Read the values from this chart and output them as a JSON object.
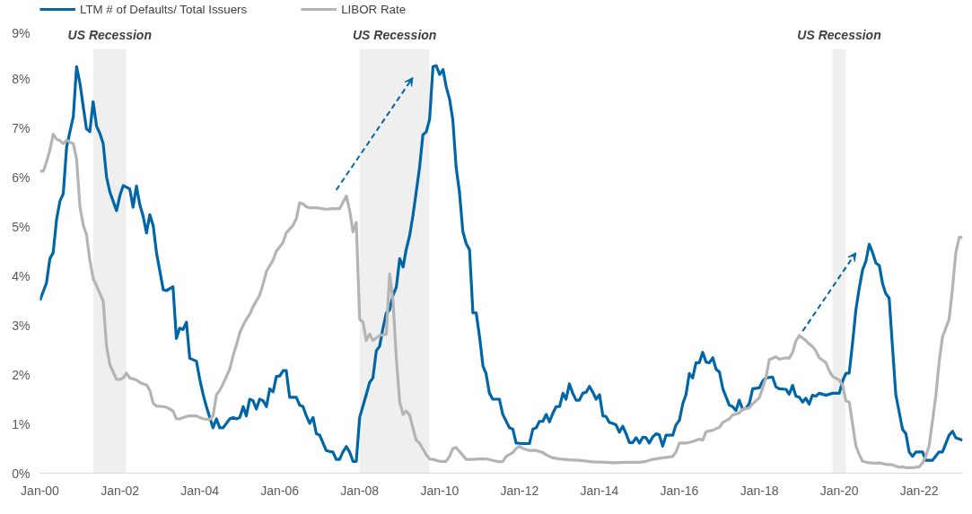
{
  "chart_data": {
    "type": "line",
    "legend": "top left",
    "grid": false,
    "line_style": "solid",
    "marker": "none",
    "xlim": [
      "2000-01",
      "2023-02"
    ],
    "ylim": [
      0,
      9
    ],
    "xticks": [
      {
        "value": "2000-01",
        "label": "Jan-00"
      },
      {
        "value": "2002-01",
        "label": "Jan-02"
      },
      {
        "value": "2004-01",
        "label": "Jan-04"
      },
      {
        "value": "2006-01",
        "label": "Jan-06"
      },
      {
        "value": "2008-01",
        "label": "Jan-08"
      },
      {
        "value": "2010-01",
        "label": "Jan-10"
      },
      {
        "value": "2012-01",
        "label": "Jan-12"
      },
      {
        "value": "2014-01",
        "label": "Jan-14"
      },
      {
        "value": "2016-01",
        "label": "Jan-16"
      },
      {
        "value": "2018-01",
        "label": "Jan-18"
      },
      {
        "value": "2020-01",
        "label": "Jan-20"
      },
      {
        "value": "2022-01",
        "label": "Jan-22"
      }
    ],
    "yticks": [
      {
        "value": 0,
        "label": "0%"
      },
      {
        "value": 1,
        "label": "1%"
      },
      {
        "value": 2,
        "label": "2%"
      },
      {
        "value": 3,
        "label": "3%"
      },
      {
        "value": 4,
        "label": "4%"
      },
      {
        "value": 5,
        "label": "5%"
      },
      {
        "value": 6,
        "label": "6%"
      },
      {
        "value": 7,
        "label": "7%"
      },
      {
        "value": 8,
        "label": "8%"
      },
      {
        "value": 9,
        "label": "9%"
      }
    ],
    "bands": [
      {
        "axis": "x",
        "from": "2001-05",
        "to": "2002-03",
        "label": "US Recession",
        "color": "#efefef"
      },
      {
        "axis": "x",
        "from": "2008-01",
        "to": "2009-10",
        "label": "US Recession",
        "color": "#efefef"
      },
      {
        "axis": "x",
        "from": "2019-11",
        "to": "2020-03",
        "label": "US Recession",
        "color": "#efefef"
      }
    ],
    "series": [
      {
        "name": "LTM # of Defaults/ Total Issuers",
        "color": "#0066a6",
        "x": [
          "2000-01",
          "2000-03",
          "2000-04",
          "2000-05",
          "2000-06",
          "2000-07",
          "2000-08",
          "2000-09",
          "2000-10",
          "2000-11",
          "2000-12",
          "2001-01",
          "2001-02",
          "2001-03",
          "2001-04",
          "2001-05",
          "2001-06",
          "2001-07",
          "2001-08",
          "2001-09",
          "2001-10",
          "2001-12",
          "2002-01",
          "2002-02",
          "2002-04",
          "2002-05",
          "2002-06",
          "2002-07",
          "2002-08",
          "2002-09",
          "2002-10",
          "2002-11",
          "2002-12",
          "2003-02",
          "2003-03",
          "2003-05",
          "2003-06",
          "2003-07",
          "2003-08",
          "2003-09",
          "2003-10",
          "2003-12",
          "2004-01",
          "2004-02",
          "2004-03",
          "2004-04",
          "2004-05",
          "2004-06",
          "2004-07",
          "2004-08",
          "2004-10",
          "2004-11",
          "2004-12",
          "2005-01",
          "2005-02",
          "2005-03",
          "2005-04",
          "2005-05",
          "2005-06",
          "2005-07",
          "2005-08",
          "2005-09",
          "2005-10",
          "2005-11",
          "2005-12",
          "2006-01",
          "2006-02",
          "2006-03",
          "2006-04",
          "2006-06",
          "2006-07",
          "2006-08",
          "2006-09",
          "2006-10",
          "2006-11",
          "2006-12",
          "2007-01",
          "2007-03",
          "2007-04",
          "2007-05",
          "2007-06",
          "2007-07",
          "2007-08",
          "2007-09",
          "2007-10",
          "2007-11",
          "2007-12",
          "2008-01",
          "2008-03",
          "2008-04",
          "2008-05",
          "2008-06",
          "2008-07",
          "2008-08",
          "2008-09",
          "2008-10",
          "2008-11",
          "2008-12",
          "2009-01",
          "2009-02",
          "2009-03",
          "2009-04",
          "2009-05",
          "2009-06",
          "2009-07",
          "2009-08",
          "2009-09",
          "2009-10",
          "2009-11",
          "2009-12",
          "2010-01",
          "2010-02",
          "2010-03",
          "2010-04",
          "2010-05",
          "2010-06",
          "2010-07",
          "2010-08",
          "2010-09",
          "2010-10",
          "2010-11",
          "2010-12",
          "2011-01",
          "2011-02",
          "2011-03",
          "2011-04",
          "2011-05",
          "2011-07",
          "2011-08",
          "2011-10",
          "2011-11",
          "2011-12",
          "2012-02",
          "2012-04",
          "2012-05",
          "2012-06",
          "2012-07",
          "2012-08",
          "2012-09",
          "2012-10",
          "2012-11",
          "2012-12",
          "2013-01",
          "2013-02",
          "2013-03",
          "2013-04",
          "2013-05",
          "2013-06",
          "2013-07",
          "2013-08",
          "2013-09",
          "2013-10",
          "2013-11",
          "2013-12",
          "2014-01",
          "2014-02",
          "2014-03",
          "2014-04",
          "2014-05",
          "2014-06",
          "2014-07",
          "2014-08",
          "2014-09",
          "2014-10",
          "2014-11",
          "2014-12",
          "2015-01",
          "2015-02",
          "2015-03",
          "2015-04",
          "2015-05",
          "2015-06",
          "2015-07",
          "2015-08",
          "2015-09",
          "2015-11",
          "2015-12",
          "2016-01",
          "2016-02",
          "2016-03",
          "2016-04",
          "2016-05",
          "2016-06",
          "2016-07",
          "2016-08",
          "2016-09",
          "2016-10",
          "2016-11",
          "2016-12",
          "2017-01",
          "2017-02",
          "2017-04",
          "2017-05",
          "2017-06",
          "2017-07",
          "2017-08",
          "2017-09",
          "2017-10",
          "2017-11",
          "2018-01",
          "2018-02",
          "2018-03",
          "2018-05",
          "2018-06",
          "2018-07",
          "2018-09",
          "2018-10",
          "2018-11",
          "2018-12",
          "2019-01",
          "2019-02",
          "2019-03",
          "2019-04",
          "2019-05",
          "2019-06",
          "2019-07",
          "2019-09",
          "2019-11",
          "2020-01",
          "2020-02",
          "2020-03",
          "2020-04",
          "2020-05",
          "2020-06",
          "2020-07",
          "2020-08",
          "2020-09",
          "2020-10",
          "2020-11",
          "2020-12",
          "2021-01",
          "2021-02",
          "2021-03",
          "2021-04",
          "2021-05",
          "2021-06",
          "2021-08",
          "2021-09",
          "2021-10",
          "2021-11",
          "2021-12",
          "2022-02",
          "2022-03",
          "2022-05",
          "2022-07",
          "2022-08",
          "2022-10",
          "2022-11",
          "2022-12",
          "2023-02"
        ],
        "values": [
          3.5,
          3.86,
          4.35,
          4.47,
          5.14,
          5.51,
          5.66,
          6.61,
          6.92,
          7.23,
          8.24,
          7.9,
          7.41,
          6.98,
          6.92,
          7.53,
          7.04,
          6.89,
          6.68,
          6.0,
          5.7,
          5.32,
          5.63,
          5.83,
          5.76,
          5.39,
          5.82,
          5.45,
          5.21,
          4.87,
          5.24,
          5.02,
          4.47,
          3.72,
          3.7,
          3.78,
          2.73,
          2.94,
          2.91,
          3.06,
          2.33,
          2.27,
          1.9,
          1.59,
          1.35,
          1.13,
          0.92,
          1.1,
          0.92,
          0.92,
          1.1,
          1.13,
          1.1,
          1.13,
          1.35,
          1.16,
          1.5,
          1.47,
          1.3,
          1.5,
          1.47,
          1.35,
          1.71,
          1.65,
          1.96,
          1.97,
          2.08,
          2.08,
          1.54,
          1.54,
          1.38,
          1.35,
          1.16,
          1.01,
          1.13,
          0.8,
          0.77,
          0.46,
          0.44,
          0.43,
          0.28,
          0.28,
          0.43,
          0.54,
          0.43,
          0.24,
          0.24,
          1.13,
          1.59,
          1.84,
          1.93,
          2.48,
          2.57,
          2.94,
          3.25,
          3.31,
          3.61,
          3.77,
          4.35,
          4.18,
          4.53,
          4.81,
          5.21,
          5.7,
          6.19,
          6.86,
          6.92,
          7.17,
          8.24,
          8.26,
          8.08,
          8.18,
          7.84,
          7.59,
          7.17,
          6.19,
          5.7,
          4.9,
          4.65,
          4.53,
          3.25,
          3.25,
          2.76,
          2.17,
          2.02,
          1.62,
          1.5,
          1.5,
          1.19,
          0.92,
          0.89,
          0.61,
          0.6,
          0.6,
          0.89,
          0.92,
          1.05,
          1.05,
          1.19,
          1.04,
          1.22,
          1.35,
          1.35,
          1.62,
          1.5,
          1.81,
          1.62,
          1.48,
          1.48,
          1.62,
          1.64,
          1.76,
          1.64,
          1.5,
          1.59,
          1.16,
          1.15,
          1.03,
          1.01,
          0.98,
          0.83,
          0.95,
          0.8,
          0.62,
          0.62,
          0.72,
          0.61,
          0.73,
          0.72,
          0.61,
          0.73,
          0.8,
          0.78,
          0.55,
          0.77,
          0.77,
          0.98,
          1.07,
          1.41,
          1.59,
          2.02,
          1.93,
          2.24,
          2.24,
          2.45,
          2.25,
          2.24,
          2.34,
          2.11,
          2.05,
          1.71,
          1.38,
          1.35,
          1.27,
          1.48,
          1.29,
          1.32,
          1.41,
          1.71,
          1.73,
          1.87,
          1.93,
          1.95,
          1.75,
          1.71,
          1.7,
          1.6,
          1.78,
          1.56,
          1.54,
          1.44,
          1.52,
          1.4,
          1.58,
          1.56,
          1.62,
          1.58,
          1.62,
          1.62,
          1.87,
          2.02,
          2.03,
          2.63,
          3.31,
          3.74,
          4.12,
          4.3,
          4.64,
          4.47,
          4.26,
          4.21,
          3.83,
          3.64,
          3.55,
          2.57,
          1.59,
          0.89,
          0.8,
          0.43,
          0.34,
          0.43,
          0.43,
          0.26,
          0.26,
          0.43,
          0.43,
          0.77,
          0.85,
          0.72,
          0.67
        ]
      },
      {
        "name": "LIBOR Rate",
        "color": "#b4b4b4",
        "x": [
          "2000-01",
          "2000-02",
          "2000-03",
          "2000-04",
          "2000-05",
          "2000-06",
          "2000-07",
          "2000-08",
          "2000-09",
          "2000-10",
          "2000-11",
          "2000-12",
          "2001-01",
          "2001-02",
          "2001-03",
          "2001-04",
          "2001-05",
          "2001-06",
          "2001-08",
          "2001-09",
          "2001-10",
          "2001-12",
          "2002-01",
          "2002-02",
          "2002-03",
          "2002-04",
          "2002-06",
          "2002-07",
          "2002-08",
          "2002-09",
          "2002-10",
          "2002-11",
          "2002-12",
          "2003-02",
          "2003-03",
          "2003-04",
          "2003-05",
          "2003-06",
          "2003-07",
          "2003-09",
          "2003-10",
          "2003-12",
          "2004-01",
          "2004-02",
          "2004-04",
          "2004-05",
          "2004-06",
          "2004-07",
          "2004-08",
          "2004-10",
          "2004-11",
          "2004-12",
          "2005-01",
          "2005-02",
          "2005-03",
          "2005-04",
          "2005-05",
          "2005-07",
          "2005-08",
          "2005-09",
          "2005-11",
          "2005-12",
          "2006-02",
          "2006-03",
          "2006-05",
          "2006-06",
          "2006-07",
          "2006-08",
          "2006-09",
          "2006-10",
          "2006-12",
          "2007-03",
          "2007-05",
          "2007-07",
          "2007-09",
          "2007-10",
          "2007-11",
          "2007-12",
          "2008-01",
          "2008-02",
          "2008-03",
          "2008-04",
          "2008-05",
          "2008-07",
          "2008-09",
          "2008-10",
          "2008-11",
          "2008-12",
          "2009-01",
          "2009-02",
          "2009-03",
          "2009-04",
          "2009-05",
          "2009-06",
          "2009-07",
          "2009-08",
          "2009-09",
          "2009-10",
          "2009-11",
          "2010-01",
          "2010-03",
          "2010-04",
          "2010-05",
          "2010-06",
          "2010-07",
          "2010-09",
          "2010-11",
          "2011-01",
          "2011-03",
          "2011-05",
          "2011-07",
          "2011-08",
          "2011-09",
          "2011-11",
          "2011-12",
          "2012-01",
          "2012-02",
          "2012-04",
          "2012-06",
          "2012-08",
          "2012-09",
          "2012-11",
          "2013-01",
          "2013-04",
          "2013-07",
          "2013-11",
          "2014-03",
          "2014-05",
          "2014-09",
          "2015-01",
          "2015-03",
          "2015-05",
          "2015-08",
          "2015-11",
          "2015-12",
          "2016-01",
          "2016-03",
          "2016-05",
          "2016-07",
          "2016-08",
          "2016-09",
          "2016-11",
          "2017-01",
          "2017-02",
          "2017-04",
          "2017-05",
          "2017-07",
          "2017-08",
          "2017-10",
          "2017-11",
          "2018-01",
          "2018-02",
          "2018-03",
          "2018-04",
          "2018-06",
          "2018-07",
          "2018-09",
          "2018-10",
          "2018-11",
          "2018-12",
          "2019-01",
          "2019-03",
          "2019-04",
          "2019-05",
          "2019-06",
          "2019-07",
          "2019-09",
          "2019-10",
          "2019-11",
          "2020-01",
          "2020-02",
          "2020-03",
          "2020-04",
          "2020-05",
          "2020-06",
          "2020-07",
          "2020-08",
          "2020-10",
          "2020-12",
          "2021-01",
          "2021-03",
          "2021-05",
          "2021-07",
          "2021-08",
          "2021-09",
          "2021-11",
          "2022-01",
          "2022-02",
          "2022-03",
          "2022-04",
          "2022-05",
          "2022-06",
          "2022-07",
          "2022-08",
          "2022-10",
          "2022-11",
          "2022-12",
          "2023-01",
          "2023-02"
        ],
        "values": [
          6.12,
          6.12,
          6.31,
          6.55,
          6.87,
          6.77,
          6.74,
          6.68,
          6.75,
          6.71,
          6.68,
          6.37,
          5.39,
          5.02,
          4.84,
          4.32,
          3.95,
          3.8,
          3.49,
          2.57,
          2.2,
          1.9,
          1.9,
          1.93,
          2.03,
          1.93,
          1.89,
          1.84,
          1.81,
          1.79,
          1.68,
          1.42,
          1.36,
          1.35,
          1.34,
          1.3,
          1.26,
          1.1,
          1.1,
          1.15,
          1.16,
          1.16,
          1.13,
          1.1,
          1.09,
          1.16,
          1.59,
          1.68,
          1.81,
          2.11,
          2.39,
          2.6,
          2.85,
          3.0,
          3.12,
          3.22,
          3.37,
          3.61,
          3.83,
          4.09,
          4.32,
          4.5,
          4.68,
          4.87,
          5.02,
          5.16,
          5.48,
          5.46,
          5.4,
          5.38,
          5.38,
          5.35,
          5.36,
          5.36,
          5.62,
          5.33,
          4.89,
          5.08,
          3.12,
          3.06,
          2.69,
          2.82,
          2.69,
          2.79,
          2.82,
          4.04,
          3.49,
          2.33,
          1.44,
          1.19,
          1.26,
          1.18,
          0.92,
          0.67,
          0.61,
          0.49,
          0.37,
          0.29,
          0.28,
          0.24,
          0.24,
          0.34,
          0.5,
          0.52,
          0.44,
          0.28,
          0.28,
          0.29,
          0.29,
          0.26,
          0.23,
          0.24,
          0.34,
          0.42,
          0.5,
          0.55,
          0.5,
          0.46,
          0.46,
          0.42,
          0.37,
          0.31,
          0.29,
          0.27,
          0.26,
          0.23,
          0.22,
          0.21,
          0.22,
          0.22,
          0.24,
          0.28,
          0.31,
          0.34,
          0.43,
          0.61,
          0.61,
          0.64,
          0.69,
          0.67,
          0.84,
          0.87,
          0.93,
          1.03,
          1.1,
          1.18,
          1.22,
          1.3,
          1.32,
          1.41,
          1.53,
          1.73,
          1.93,
          2.3,
          2.36,
          2.31,
          2.34,
          2.33,
          2.45,
          2.68,
          2.79,
          2.69,
          2.62,
          2.57,
          2.48,
          2.34,
          2.24,
          2.08,
          1.96,
          1.89,
          1.78,
          1.47,
          1.44,
          1.01,
          0.55,
          0.38,
          0.24,
          0.21,
          0.2,
          0.21,
          0.18,
          0.17,
          0.12,
          0.13,
          0.11,
          0.11,
          0.13,
          0.21,
          0.34,
          0.55,
          1.04,
          1.56,
          2.24,
          2.76,
          3.12,
          3.74,
          4.47,
          4.78,
          4.78
        ]
      }
    ]
  }
}
